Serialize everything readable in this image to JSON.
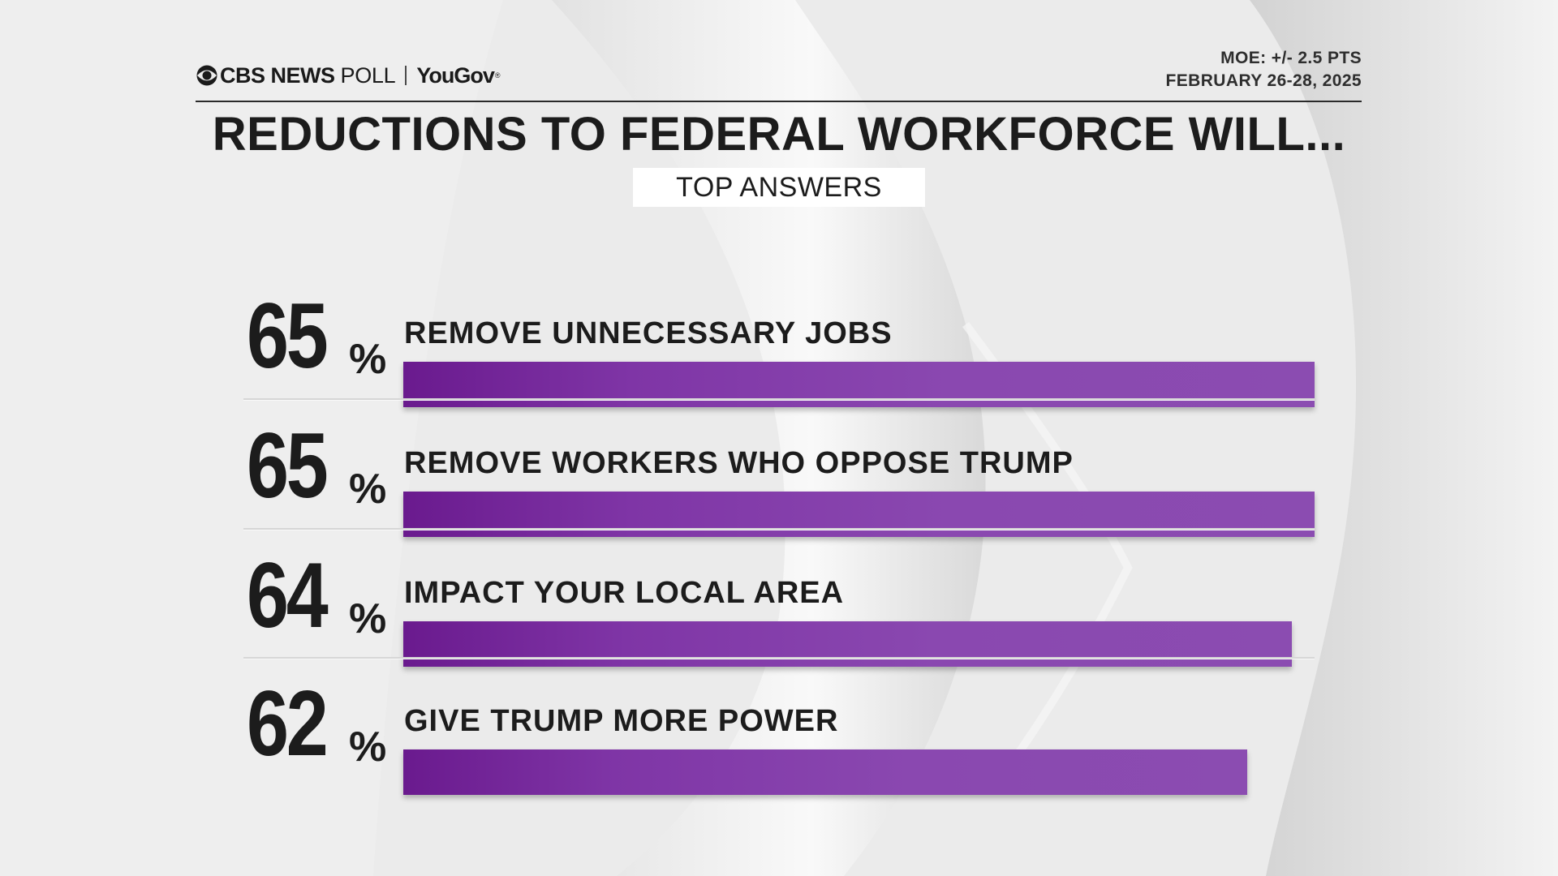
{
  "header": {
    "network": "CBS NEWS",
    "poll": "POLL",
    "partner": "YouGov",
    "moe": "MOE: +/- 2.5 PTS",
    "dates": "FEBRUARY 26-28, 2025"
  },
  "colors": {
    "bar": "#8b4cb1",
    "bar_dark": "#6a1a8e",
    "text": "#1c1c1c",
    "background": "#ececec"
  },
  "chart_data": {
    "type": "bar",
    "orientation": "horizontal",
    "title": "REDUCTIONS TO FEDERAL WORKFORCE WILL...",
    "subtitle": "TOP ANSWERS",
    "unit": "%",
    "categories": [
      "REMOVE UNNECESSARY JOBS",
      "REMOVE WORKERS WHO OPPOSE TRUMP",
      "IMPACT YOUR LOCAL AREA",
      "GIVE TRUMP MORE POWER"
    ],
    "values": [
      65,
      65,
      64,
      62
    ],
    "xlim": [
      0,
      65
    ],
    "grid": false
  }
}
